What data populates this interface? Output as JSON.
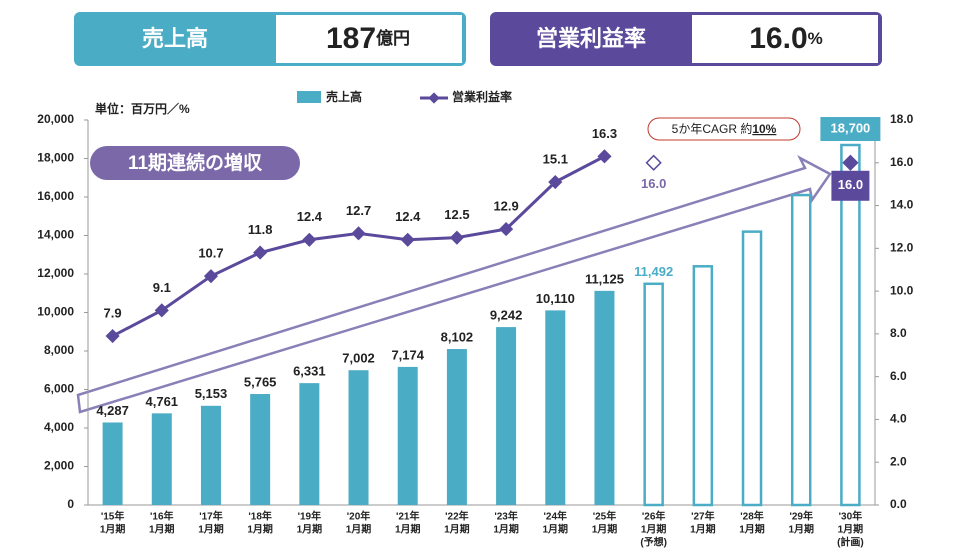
{
  "kpis": [
    {
      "label": "売上高",
      "value": "187",
      "unit": "億円"
    },
    {
      "label": "営業利益率",
      "value": "16.0",
      "unit": "%"
    }
  ],
  "chart_data": {
    "type": "bar_line",
    "unit_note": "単位：百万円／%",
    "badge": "11期連続の増収",
    "cagr": {
      "text": "5か年CAGR 約",
      "emphasis": "10%"
    },
    "categories": [
      [
        "'15年",
        "1月期"
      ],
      [
        "'16年",
        "1月期"
      ],
      [
        "'17年",
        "1月期"
      ],
      [
        "'18年",
        "1月期"
      ],
      [
        "'19年",
        "1月期"
      ],
      [
        "'20年",
        "1月期"
      ],
      [
        "'21年",
        "1月期"
      ],
      [
        "'22年",
        "1月期"
      ],
      [
        "'23年",
        "1月期"
      ],
      [
        "'24年",
        "1月期"
      ],
      [
        "'25年",
        "1月期"
      ],
      [
        "'26年",
        "1月期",
        "(予想)"
      ],
      [
        "'27年",
        "1月期"
      ],
      [
        "'28年",
        "1月期"
      ],
      [
        "'29年",
        "1月期"
      ],
      [
        "'30年",
        "1月期",
        "(計画)"
      ]
    ],
    "series": [
      {
        "name": "売上高",
        "color": "#4bacc6",
        "axis": "y",
        "values": [
          4287,
          4761,
          5153,
          5765,
          6331,
          7002,
          7174,
          8102,
          9242,
          10110,
          11125,
          11492,
          12400,
          14200,
          16100,
          18700
        ],
        "value_labels": [
          "4,287",
          "4,761",
          "5,153",
          "5,765",
          "6,331",
          "7,002",
          "7,174",
          "8,102",
          "9,242",
          "10,110",
          "11,125",
          "11,492",
          null,
          null,
          null,
          "18,700"
        ],
        "styles": [
          "solid",
          "solid",
          "solid",
          "solid",
          "solid",
          "solid",
          "solid",
          "solid",
          "solid",
          "solid",
          "solid",
          "outline",
          "outline",
          "outline",
          "outline",
          "outline"
        ]
      },
      {
        "name": "営業利益率",
        "color": "#5b4a9b",
        "axis": "y2",
        "values": [
          7.9,
          9.1,
          10.7,
          11.8,
          12.4,
          12.7,
          12.4,
          12.5,
          12.9,
          15.1,
          16.3,
          null,
          null,
          null,
          null,
          null
        ],
        "value_labels": [
          "7.9",
          "9.1",
          "10.7",
          "11.8",
          "12.4",
          "12.7",
          "12.4",
          "12.5",
          "12.9",
          "15.1",
          "16.3",
          null,
          null,
          null,
          null,
          null
        ]
      }
    ],
    "margin_forecast": {
      "values": [
        null,
        null,
        null,
        null,
        null,
        null,
        null,
        null,
        null,
        null,
        null,
        16.0,
        null,
        null,
        null,
        16.0
      ],
      "value_labels": [
        null,
        null,
        null,
        null,
        null,
        null,
        null,
        null,
        null,
        null,
        null,
        "16.0",
        null,
        null,
        null,
        "16.0"
      ],
      "styles": [
        null,
        null,
        null,
        null,
        null,
        null,
        null,
        null,
        null,
        null,
        null,
        "hollow",
        null,
        null,
        null,
        "filled"
      ]
    },
    "ylim": [
      0,
      20000
    ],
    "yticks": [
      0,
      {
        "value": 2000,
        "label": "2,000"
      },
      {
        "value": 4000,
        "label": "4,000"
      },
      {
        "value": 6000,
        "label": "6,000"
      },
      {
        "value": 8000,
        "label": "8,000"
      },
      {
        "value": 10000,
        "label": "10,000"
      },
      {
        "value": 12000,
        "label": "12,000"
      },
      {
        "value": 14000,
        "label": "14,000"
      },
      {
        "value": 16000,
        "label": "16,000"
      },
      {
        "value": 18000,
        "label": "18,000"
      },
      {
        "value": 20000,
        "label": "20,000"
      }
    ],
    "y2lim": [
      0,
      18
    ],
    "y2ticks": [
      {
        "value": 0,
        "label": "0.0"
      },
      {
        "value": 2,
        "label": "2.0"
      },
      {
        "value": 4,
        "label": "4.0"
      },
      {
        "value": 6,
        "label": "6.0"
      },
      {
        "value": 8,
        "label": "8.0"
      },
      {
        "value": 10,
        "label": "10.0"
      },
      {
        "value": 12,
        "label": "12.0"
      },
      {
        "value": 14,
        "label": "14.0"
      },
      {
        "value": 16,
        "label": "16.0"
      },
      {
        "value": 18,
        "label": "18.0"
      }
    ]
  }
}
